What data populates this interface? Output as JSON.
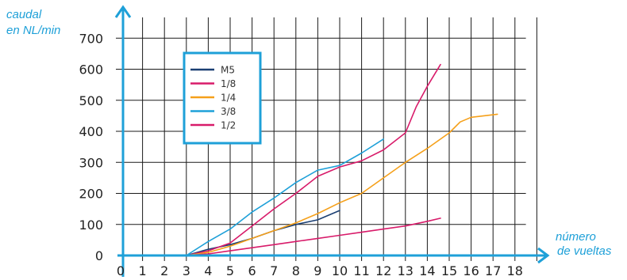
{
  "chart_data": {
    "type": "line",
    "xlabel": [
      "número",
      "de vueltas"
    ],
    "ylabel": [
      "caudal",
      "en NL/min"
    ],
    "x_ticks": [
      0,
      1,
      2,
      3,
      4,
      5,
      6,
      7,
      8,
      9,
      10,
      11,
      12,
      13,
      14,
      15,
      16,
      17,
      18
    ],
    "y_ticks": [
      0,
      100,
      200,
      300,
      400,
      500,
      600,
      700
    ],
    "xlim": [
      0,
      18.5
    ],
    "ylim": [
      0,
      760
    ],
    "grid": true,
    "legend_position": "top-left",
    "series": [
      {
        "name": "M5",
        "color": "#1b3f73",
        "x": [
          3,
          4,
          5,
          6,
          7,
          8,
          9,
          10
        ],
        "y": [
          0,
          20,
          35,
          55,
          80,
          100,
          115,
          145
        ]
      },
      {
        "name": "1/8",
        "color": "#d81b6a",
        "x": [
          3,
          4,
          5,
          6,
          7,
          8,
          9,
          10,
          11,
          12,
          13,
          13.5,
          14,
          14.6
        ],
        "y": [
          0,
          15,
          40,
          95,
          150,
          200,
          255,
          285,
          305,
          340,
          395,
          480,
          545,
          615
        ]
      },
      {
        "name": "1/4",
        "color": "#f5a01a",
        "x": [
          3,
          4,
          5,
          6,
          7,
          8,
          9,
          10,
          11,
          12,
          13,
          14,
          15,
          15.5,
          16,
          17.2
        ],
        "y": [
          0,
          10,
          30,
          55,
          80,
          105,
          135,
          170,
          200,
          250,
          300,
          345,
          395,
          430,
          445,
          455
        ]
      },
      {
        "name": "3/8",
        "color": "#1ea0d8",
        "x": [
          3,
          4,
          5,
          6,
          7,
          8,
          9,
          10,
          11,
          12
        ],
        "y": [
          0,
          45,
          85,
          140,
          185,
          235,
          275,
          290,
          330,
          375
        ]
      },
      {
        "name": "1/2",
        "color": "#d81b6a",
        "x": [
          3,
          4,
          5,
          6,
          7,
          8,
          9,
          10,
          11,
          12,
          13,
          14,
          14.6
        ],
        "y": [
          0,
          5,
          15,
          25,
          35,
          45,
          55,
          65,
          75,
          85,
          95,
          110,
          120
        ]
      }
    ]
  }
}
